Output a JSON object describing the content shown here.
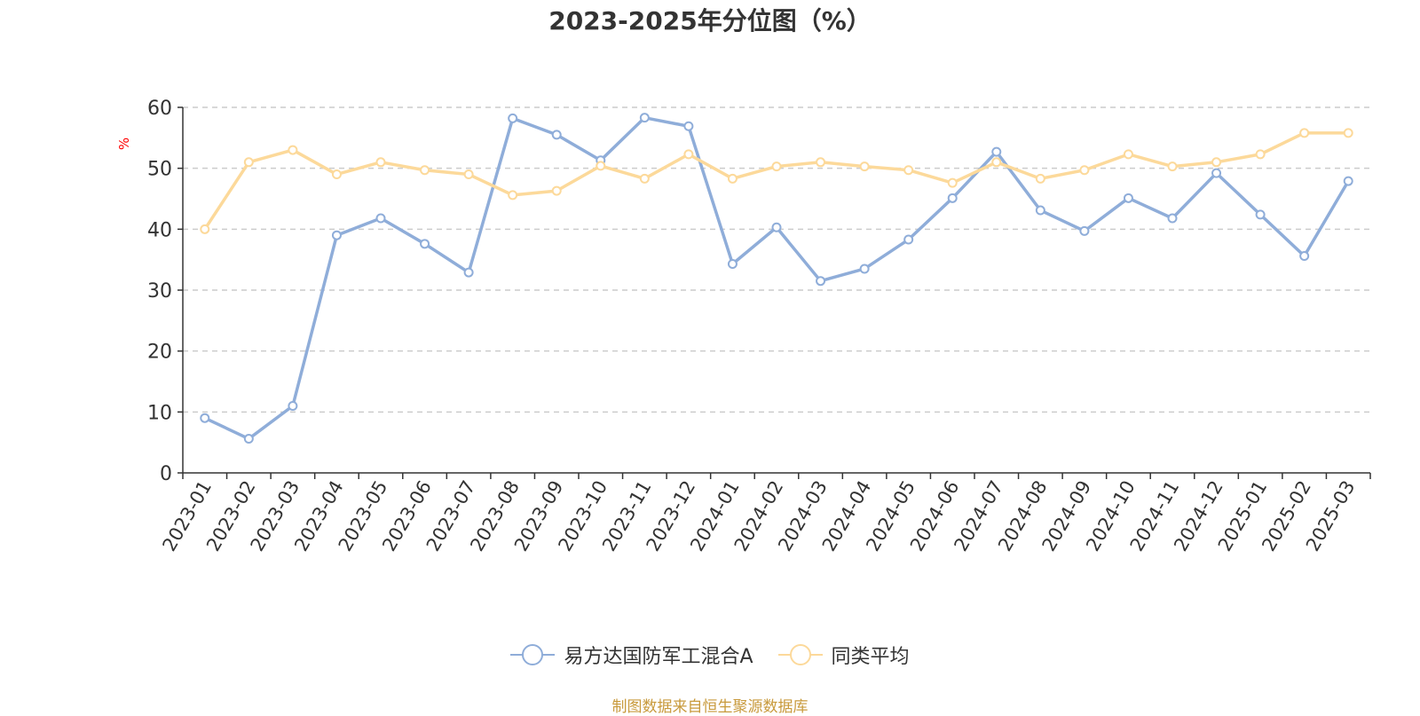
{
  "chart_data": {
    "type": "line",
    "title": "2023-2025年分位图（%）",
    "ylabel": "%",
    "xlabel": "",
    "ylim": [
      0,
      60
    ],
    "yticks": [
      0,
      10,
      20,
      30,
      40,
      50,
      60
    ],
    "grid": true,
    "legend_position": "bottom",
    "categories": [
      "2023-01",
      "2023-02",
      "2023-03",
      "2023-04",
      "2023-05",
      "2023-06",
      "2023-07",
      "2023-08",
      "2023-09",
      "2023-10",
      "2023-11",
      "2023-12",
      "2024-01",
      "2024-02",
      "2024-03",
      "2024-04",
      "2024-05",
      "2024-06",
      "2024-07",
      "2024-08",
      "2024-09",
      "2024-10",
      "2024-11",
      "2024-12",
      "2025-01",
      "2025-02",
      "2025-03"
    ],
    "series": [
      {
        "name": "易方达国防军工混合A",
        "color": "#8fadd9",
        "values": [
          9.0,
          5.6,
          11.0,
          39.0,
          41.8,
          37.6,
          32.9,
          58.2,
          55.5,
          51.3,
          58.3,
          56.9,
          34.3,
          40.3,
          31.5,
          33.5,
          38.3,
          45.1,
          52.7,
          43.1,
          39.7,
          45.1,
          41.8,
          49.2,
          42.4,
          35.6,
          47.9
        ]
      },
      {
        "name": "同类平均",
        "color": "#fcd99a",
        "values": [
          40.0,
          51.0,
          53.0,
          49.0,
          51.0,
          49.7,
          49.0,
          45.6,
          46.3,
          50.4,
          48.3,
          52.3,
          48.3,
          50.3,
          51.0,
          50.3,
          49.7,
          47.6,
          51.0,
          48.3,
          49.7,
          52.3,
          50.3,
          51.0,
          52.3,
          55.8,
          55.8
        ]
      }
    ]
  },
  "footer": {
    "source": "制图数据来自恒生聚源数据库"
  },
  "colors": {
    "axis": "#333333",
    "grid": "#cccccc",
    "ylabel": "#ff0000",
    "source": "#c89a3c"
  }
}
